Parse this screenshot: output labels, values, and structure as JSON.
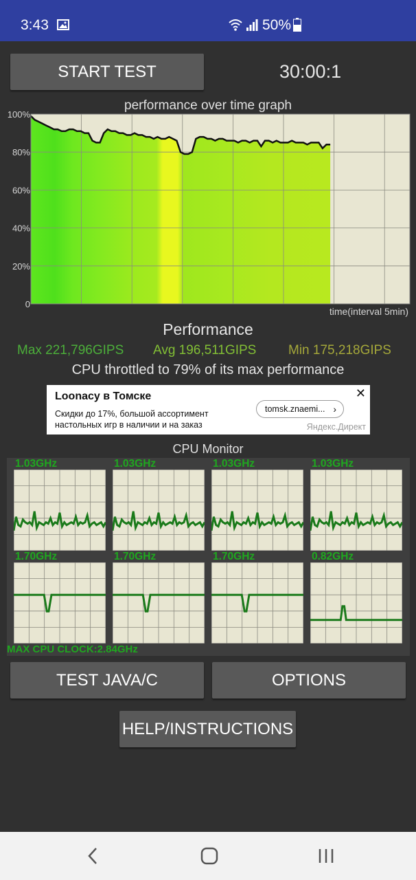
{
  "status_bar": {
    "time": "3:43",
    "battery": "50%"
  },
  "controls": {
    "start_test": "START TEST",
    "timer": "30:00:1",
    "test_java_c": "TEST JAVA/C",
    "options": "OPTIONS",
    "help": "HELP/INSTRUCTIONS"
  },
  "graph": {
    "title": "performance over time graph",
    "y_ticks": [
      "100%",
      "80%",
      "60%",
      "40%",
      "20%",
      "0"
    ],
    "x_label": "time(interval 5min)"
  },
  "chart_data": {
    "type": "line",
    "title": "performance over time graph",
    "xlabel": "time(interval 5min)",
    "ylabel": "",
    "ylim": [
      0,
      100
    ],
    "x_extent_fraction": 0.79,
    "series": [
      {
        "name": "",
        "values": [
          99,
          97,
          96,
          95,
          94,
          93,
          92,
          92,
          91,
          91,
          92,
          92,
          91,
          91,
          90,
          90,
          86,
          85,
          85,
          90,
          92,
          91,
          91,
          90,
          90,
          89,
          89,
          90,
          89,
          89,
          88,
          88,
          87,
          88,
          87,
          87,
          88,
          87,
          86,
          80,
          79,
          79,
          80,
          87,
          88,
          88,
          87,
          87,
          86,
          87,
          87,
          86,
          86,
          86,
          85,
          86,
          86,
          85,
          86,
          86,
          83,
          86,
          86,
          85,
          86,
          85,
          85,
          85,
          86,
          85,
          85,
          85,
          84,
          85,
          85,
          85,
          82,
          84,
          84
        ]
      }
    ],
    "grid": true
  },
  "performance": {
    "label": "Performance",
    "max": "Max 221,796GIPS",
    "avg": "Avg 196,511GIPS",
    "min": "Min 175,218GIPS",
    "throttle_text": "CPU throttled to 79% of its max performance"
  },
  "colors": {
    "max": "#4caf3a",
    "avg": "#82bf35",
    "min": "#a5a83a",
    "cpu_line": "#1a7a1a",
    "status_bar": "#2f3fa0"
  },
  "ad": {
    "title": "Loonacy в Томске",
    "text": "Скидки до 17%, большой ассортимент настольных игр в наличии и на заказ",
    "link": "tomsk.znaemi...",
    "source": "Яндекс.Директ"
  },
  "cpu_monitor": {
    "title": "CPU Monitor",
    "max_clock": "MAX CPU CLOCK:2.84GHz",
    "cores": [
      {
        "freq": "1.03GHz",
        "level": 0.35,
        "kind": "wave"
      },
      {
        "freq": "1.03GHz",
        "level": 0.35,
        "kind": "wave"
      },
      {
        "freq": "1.03GHz",
        "level": 0.35,
        "kind": "wave"
      },
      {
        "freq": "1.03GHz",
        "level": 0.35,
        "kind": "wave"
      },
      {
        "freq": "1.70GHz",
        "level": 0.6,
        "kind": "dip"
      },
      {
        "freq": "1.70GHz",
        "level": 0.6,
        "kind": "dip"
      },
      {
        "freq": "1.70GHz",
        "level": 0.6,
        "kind": "dip"
      },
      {
        "freq": "0.82GHz",
        "level": 0.29,
        "kind": "spike"
      }
    ]
  }
}
